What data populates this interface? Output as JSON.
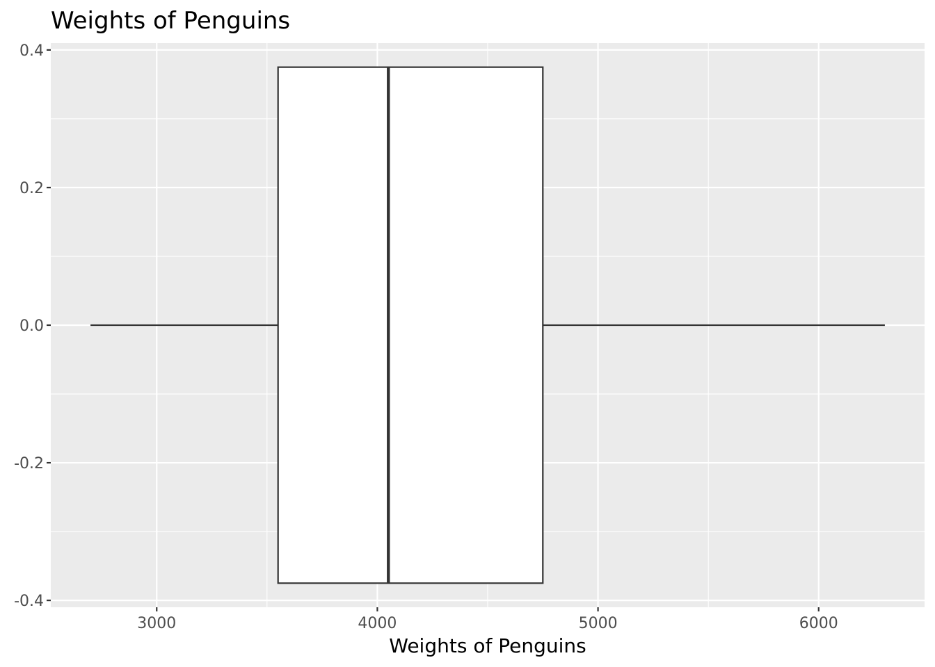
{
  "chart_data": {
    "type": "boxplot",
    "title": "Weights of Penguins",
    "xlabel": "Weights of Penguins",
    "ylabel": "",
    "xlim": [
      2520,
      6480
    ],
    "ylim": [
      -0.41,
      0.41
    ],
    "x_ticks": [
      3000,
      4000,
      5000,
      6000
    ],
    "x_minor_ticks": [
      3500,
      4500,
      5500
    ],
    "y_ticks": [
      0.4,
      0.2,
      0.0,
      -0.2,
      -0.4
    ],
    "y_tick_labels": [
      "0.4",
      "0.2",
      "0.0",
      "-0.2",
      "-0.4"
    ],
    "y_minor_ticks": [
      0.3,
      0.1,
      -0.1,
      -0.3
    ],
    "grid": true,
    "box": {
      "min": 2700,
      "q1": 3550,
      "median": 4050,
      "q3": 4750,
      "max": 6300,
      "y_center": 0.0,
      "box_half_width": 0.375
    },
    "colors": {
      "panel_background": "#ebebeb",
      "grid": "#ffffff",
      "box_fill": "#ffffff",
      "box_stroke": "#333333",
      "tick": "#333333"
    }
  }
}
